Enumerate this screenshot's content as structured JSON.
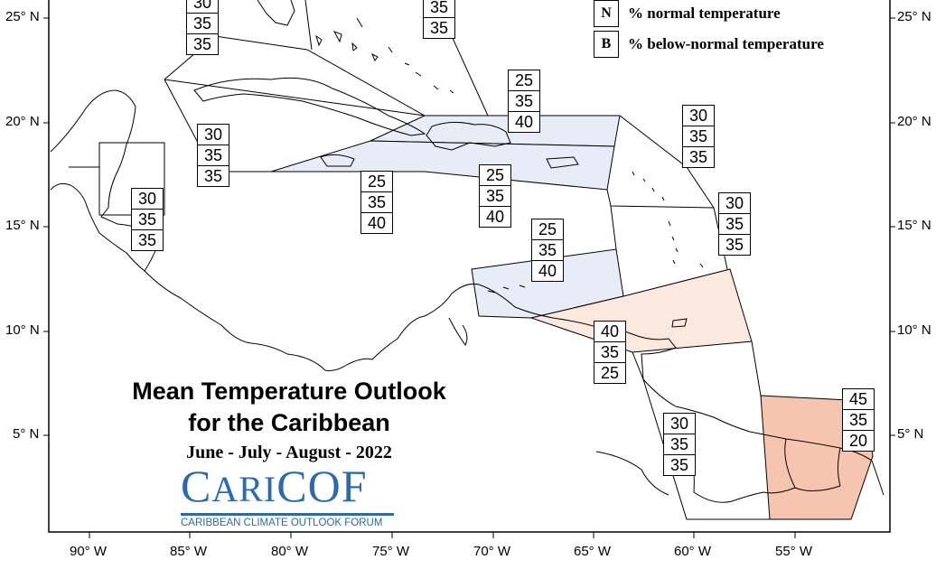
{
  "map": {
    "title_line1": "Mean Temperature Outlook",
    "title_line2": "for the Caribbean",
    "subtitle": "June - July - August - 2022",
    "logo": {
      "name_prefix": "C",
      "name_mid": "ARI",
      "name_suffix": "COF",
      "tagline": "CARIBBEAN CLIMATE OUTLOOK FORUM",
      "color": "#2a6ab3"
    },
    "legend": [
      {
        "key": "N",
        "text": "% normal temperature"
      },
      {
        "key": "B",
        "text": "% below-normal temperature"
      }
    ],
    "x_axis_labels": [
      "90° W",
      "85° W",
      "80° W",
      "75° W",
      "70° W",
      "65° W",
      "60° W",
      "55° W"
    ],
    "y_axis_labels": [
      "25° N",
      "20° N",
      "15° N",
      "10° N",
      "5° N"
    ],
    "shading_colors": {
      "below_normal": "#e8ecf6",
      "above_normal_light": "#fbe8df",
      "above_normal_strong": "#f6c5b0"
    },
    "forecast_boxes": [
      {
        "id": "bahamas-nw",
        "values": [
          "30",
          "35",
          "35"
        ]
      },
      {
        "id": "bahamas-se",
        "values": [
          "35",
          "35"
        ]
      },
      {
        "id": "greater-antilles-east",
        "values": [
          "25",
          "35",
          "40"
        ]
      },
      {
        "id": "cuba-west",
        "values": [
          "30",
          "35",
          "35"
        ]
      },
      {
        "id": "belize",
        "values": [
          "30",
          "35",
          "35"
        ]
      },
      {
        "id": "jamaica",
        "values": [
          "25",
          "35",
          "40"
        ]
      },
      {
        "id": "hispaniola-south",
        "values": [
          "25",
          "35",
          "40"
        ]
      },
      {
        "id": "leeward-islands",
        "values": [
          "30",
          "35",
          "35"
        ]
      },
      {
        "id": "windward-islands",
        "values": [
          "30",
          "35",
          "35"
        ]
      },
      {
        "id": "abc-islands",
        "values": [
          "25",
          "35",
          "40"
        ]
      },
      {
        "id": "trinidad",
        "values": [
          "40",
          "35",
          "25"
        ]
      },
      {
        "id": "guyana",
        "values": [
          "30",
          "35",
          "35"
        ]
      },
      {
        "id": "french-guiana",
        "values": [
          "45",
          "35",
          "20"
        ]
      }
    ]
  }
}
